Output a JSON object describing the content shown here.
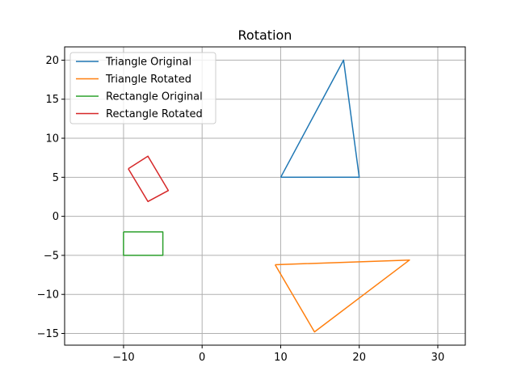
{
  "chart_data": {
    "type": "line",
    "title": "Rotation",
    "xlabel": "",
    "ylabel": "",
    "xlim": [
      -17.5,
      33.5
    ],
    "ylim": [
      -16.5,
      21.7
    ],
    "xticks": [
      -10,
      0,
      10,
      20,
      30
    ],
    "yticks": [
      -15,
      -10,
      -5,
      0,
      5,
      10,
      15,
      20
    ],
    "xtick_labels": [
      "−10",
      "0",
      "10",
      "20",
      "30"
    ],
    "ytick_labels": [
      "−15",
      "−10",
      "−5",
      "0",
      "5",
      "10",
      "15",
      "20"
    ],
    "grid": true,
    "legend_position": "upper-left",
    "series": [
      {
        "name": "Triangle Original",
        "color": "#1f77b4",
        "x": [
          10,
          20,
          18,
          10
        ],
        "y": [
          5,
          5,
          20,
          5
        ]
      },
      {
        "name": "Triangle Rotated",
        "color": "#ff7f0e",
        "x": [
          9.3,
          26.4,
          14.3,
          9.3
        ],
        "y": [
          -6.2,
          -5.6,
          -14.8,
          -6.2
        ]
      },
      {
        "name": "Rectangle Original",
        "color": "#2ca02c",
        "x": [
          -10,
          -5,
          -5,
          -10,
          -10
        ],
        "y": [
          -2,
          -2,
          -5,
          -5,
          -2
        ]
      },
      {
        "name": "Rectangle Rotated",
        "color": "#d62728",
        "x": [
          -9.4,
          -6.9,
          -4.3,
          -6.9,
          -9.4
        ],
        "y": [
          6.1,
          7.7,
          3.3,
          1.9,
          6.1
        ]
      }
    ]
  }
}
